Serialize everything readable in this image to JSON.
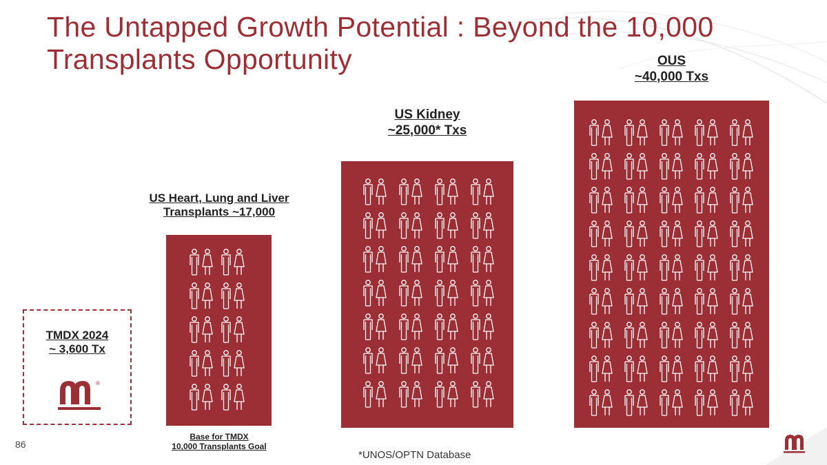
{
  "colors": {
    "accent": "#9b2f35",
    "icon_stroke": "#ffffff",
    "text": "#222222"
  },
  "slide": {
    "title_line1": "The Untapped Growth Potential : Beyond the 10,000",
    "title_line2": "Transplants Opportunity",
    "page_number": "86",
    "footnote": "*UNOS/OPTN Database"
  },
  "tmdx": {
    "line1": "TMDX 2024",
    "line2": "~ 3,600 Tx",
    "logo_icon": "transmedics-logo",
    "registered": "®"
  },
  "heart_lung_liver": {
    "line1": "US Heart, Lung and Liver",
    "line2": "Transplants ~17,000",
    "caption_line1": "Base for TMDX",
    "caption_line2": "10,000 Transplants Goal",
    "icon": "people-pair-icon",
    "grid": {
      "rows": 5,
      "cols": 2
    }
  },
  "us_kidney": {
    "line1": "US Kidney",
    "line2": "~25,000* Txs",
    "icon": "people-pair-icon",
    "grid": {
      "rows": 7,
      "cols": 4
    }
  },
  "ous": {
    "line1": "OUS",
    "line2": "~40,000 Txs",
    "icon": "people-pair-icon",
    "grid": {
      "rows": 9,
      "cols": 5
    }
  }
}
